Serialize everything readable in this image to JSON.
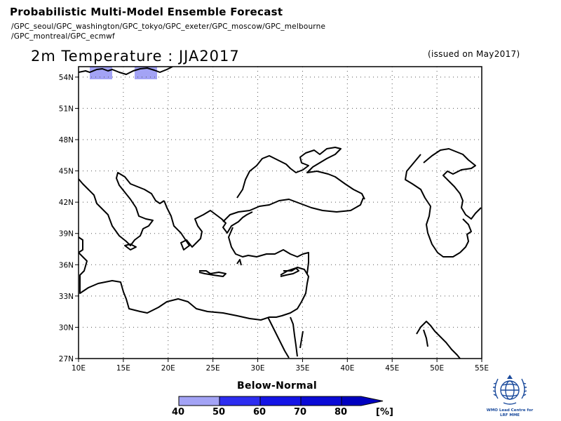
{
  "header": {
    "title": "Probabilistic Multi-Model Ensemble Forecast",
    "models_line_1": "/GPC_seoul/GPC_washington/GPC_tokyo/GPC_exeter/GPC_moscow/GPC_melbourne",
    "models_line_2": "/GPC_montreal/GPC_ecmwf"
  },
  "map": {
    "title": "2m Temperature : JJA2017",
    "issued": "(issued on May2017)",
    "lat_labels": [
      "54N",
      "51N",
      "48N",
      "45N",
      "42N",
      "39N",
      "36N",
      "33N",
      "30N",
      "27N"
    ],
    "lon_labels": [
      "10E",
      "15E",
      "20E",
      "25E",
      "30E",
      "35E",
      "40E",
      "45E",
      "50E",
      "55E"
    ],
    "extent": {
      "lon_min": 10,
      "lon_max": 55,
      "lat_min": 27,
      "lat_max": 55
    },
    "shaded_regions": [
      {
        "category": "Below-Normal",
        "range": "40-50",
        "color": "#a3a3f5"
      },
      {
        "category": "Below-Normal",
        "range": "40-50",
        "color": "#a3a3f5"
      }
    ]
  },
  "legend": {
    "title": "Below-Normal",
    "labels": [
      "40",
      "50",
      "60",
      "70",
      "80"
    ],
    "unit": "[%]",
    "colors": [
      "#a3a3f5",
      "#2d2df0",
      "#1414e6",
      "#0a0ad6",
      "#0000c0"
    ]
  },
  "logo": {
    "icon": "wmo-emblem-icon",
    "caption_1": "WMO Lead Centre for",
    "caption_2": "LRF MME"
  }
}
